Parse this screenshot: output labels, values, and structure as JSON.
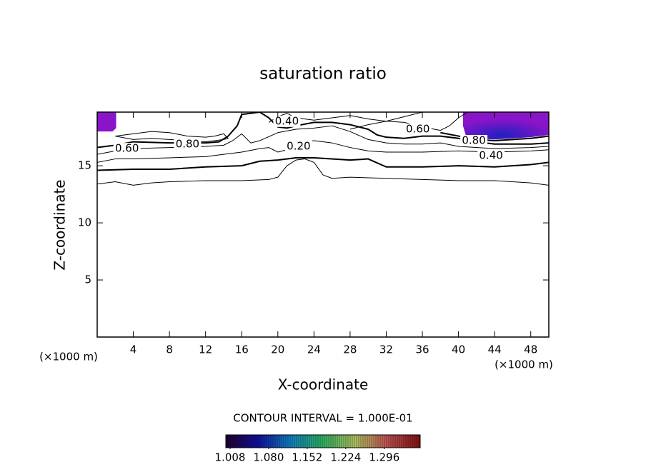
{
  "chart_data": {
    "type": "contour",
    "title": "saturation ratio",
    "x_label": "X-coordinate",
    "y_label": "Z-coordinate",
    "x_unit": "(×1000 m)",
    "y_unit": "(×1000 m)",
    "xlim": [
      0,
      50
    ],
    "ylim": [
      0,
      19.7
    ],
    "xticks": [
      4,
      8,
      12,
      16,
      20,
      24,
      28,
      32,
      36,
      40,
      44,
      48
    ],
    "yticks": [
      5,
      10,
      15
    ],
    "contours": [
      {
        "linewidth": 1,
        "x": [
          0,
          2,
          4,
          6,
          8,
          12,
          16,
          19,
          20,
          21,
          22,
          23,
          24,
          25,
          26,
          28,
          32,
          36,
          40,
          44,
          48,
          50
        ],
        "y": [
          13.4,
          13.6,
          13.3,
          13.5,
          13.6,
          13.7,
          13.7,
          13.8,
          14.0,
          15.0,
          15.5,
          15.6,
          15.3,
          14.2,
          13.9,
          14.0,
          13.9,
          13.8,
          13.7,
          13.7,
          13.5,
          13.3
        ]
      },
      {
        "linewidth": 2,
        "x": [
          0,
          4,
          8,
          12,
          16,
          18,
          20,
          22,
          24,
          28,
          30,
          32,
          36,
          40,
          44,
          48,
          50
        ],
        "y": [
          14.6,
          14.7,
          14.7,
          14.9,
          15.0,
          15.4,
          15.5,
          15.7,
          15.7,
          15.5,
          15.6,
          14.9,
          14.9,
          15.0,
          14.9,
          15.1,
          15.3
        ]
      },
      {
        "linewidth": 1,
        "x": [
          0,
          2,
          4,
          8,
          12,
          14,
          16,
          18,
          19,
          20,
          21,
          22,
          24,
          26,
          28,
          30,
          32,
          36,
          40,
          44,
          48,
          50
        ],
        "y": [
          15.3,
          15.6,
          15.6,
          15.7,
          15.8,
          16.0,
          16.2,
          16.5,
          16.6,
          16.2,
          16.4,
          17.0,
          17.2,
          17.0,
          16.6,
          16.3,
          16.2,
          16.2,
          16.3,
          16.2,
          16.3,
          16.4
        ]
      },
      {
        "linewidth": 1,
        "x": [
          0,
          2,
          4,
          8,
          12,
          14,
          15,
          16,
          17,
          18,
          20,
          22,
          24,
          26,
          28,
          30,
          32,
          34,
          36,
          38,
          40,
          44,
          48,
          50
        ],
        "y": [
          16.0,
          16.3,
          16.5,
          16.6,
          16.7,
          16.8,
          17.2,
          17.8,
          17.0,
          17.2,
          17.9,
          18.2,
          18.3,
          18.5,
          18.0,
          17.3,
          17.0,
          16.9,
          16.9,
          17.0,
          16.7,
          16.5,
          16.6,
          16.7
        ]
      },
      {
        "linewidth": 2,
        "x": [
          0,
          2,
          4,
          8,
          12,
          13.5,
          14.5,
          15.5,
          16,
          17,
          18,
          19,
          20,
          21,
          22,
          24,
          26,
          28,
          30,
          31,
          32,
          34,
          36,
          38,
          40,
          42,
          44,
          48,
          50
        ],
        "y": [
          16.6,
          16.8,
          17.1,
          17.0,
          17.0,
          17.1,
          17.6,
          18.5,
          19.5,
          19.6,
          19.7,
          19.2,
          18.4,
          18.3,
          18.5,
          18.8,
          18.8,
          18.6,
          18.2,
          17.7,
          17.5,
          17.4,
          17.6,
          17.6,
          17.4,
          17.1,
          16.9,
          16.9,
          17.0
        ]
      },
      {
        "linewidth": 1,
        "x": [
          2,
          4,
          6,
          8,
          10,
          12,
          13,
          14,
          14.5,
          14,
          12,
          10,
          8,
          6,
          4,
          2
        ],
        "y": [
          17.6,
          17.8,
          18.0,
          17.9,
          17.6,
          17.5,
          17.6,
          17.8,
          17.4,
          17.3,
          17.1,
          17.2,
          17.3,
          17.4,
          17.3,
          17.6
        ]
      },
      {
        "linewidth": 1,
        "x": [
          28,
          30,
          32,
          34,
          36,
          38,
          39,
          40,
          41
        ],
        "y": [
          18.2,
          18.6,
          18.9,
          18.8,
          18.4,
          18.1,
          18.5,
          19.2,
          19.7
        ]
      },
      {
        "linewidth": 1,
        "x": [
          19,
          20,
          21,
          22,
          24,
          26,
          28,
          30,
          32,
          34,
          36
        ],
        "y": [
          18.8,
          19.3,
          19.6,
          19.2,
          19.0,
          19.2,
          19.4,
          19.1,
          18.9,
          19.3,
          19.7
        ]
      },
      {
        "linewidth": 2,
        "x": [
          38,
          40,
          42,
          44,
          46,
          48,
          50
        ],
        "y": [
          17.9,
          17.6,
          17.3,
          17.2,
          17.3,
          17.4,
          17.6
        ]
      }
    ],
    "contour_labels": [
      {
        "value": 0.6,
        "label": "0.60",
        "x": 3.3,
        "y": 16.5
      },
      {
        "value": 0.8,
        "label": "0.80",
        "x": 10,
        "y": 16.9
      },
      {
        "value": 0.4,
        "label": "0.40",
        "x": 21,
        "y": 18.9
      },
      {
        "value": 0.2,
        "label": "0.20",
        "x": 22.3,
        "y": 16.7
      },
      {
        "value": 0.6,
        "label": "0.60",
        "x": 35.5,
        "y": 18.2
      },
      {
        "value": 0.8,
        "label": "0.80",
        "x": 41.7,
        "y": 17.2
      },
      {
        "value": 0.4,
        "label": "0.40",
        "x": 43.6,
        "y": 15.9
      }
    ],
    "filled_regions": [
      {
        "color": "#8a14c8",
        "x": [
          0,
          2.1,
          2.1,
          1.7,
          0
        ],
        "y": [
          19.7,
          19.7,
          18.3,
          18.0,
          18.0
        ]
      },
      {
        "color": "#8a14c8",
        "center_color": "#2020c0",
        "x": [
          40.5,
          50,
          50,
          48,
          46,
          44,
          42,
          40.8,
          40.5
        ],
        "y": [
          19.7,
          19.7,
          17.7,
          17.5,
          17.4,
          17.3,
          17.4,
          17.7,
          18.5
        ]
      }
    ],
    "contour_interval_text": "CONTOUR INTERVAL = 1.000E-01",
    "colorbar": {
      "clim": [
        1.0,
        1.363
      ],
      "colors": [
        "#200030",
        "#1010a0",
        "#1080c0",
        "#30b060",
        "#b0c060",
        "#c05050",
        "#801010"
      ],
      "ticks": [
        {
          "value": 1.008,
          "label": "1.008"
        },
        {
          "value": 1.08,
          "label": "1.080"
        },
        {
          "value": 1.152,
          "label": "1.152"
        },
        {
          "value": 1.224,
          "label": "1.224"
        },
        {
          "value": 1.296,
          "label": "1.296"
        }
      ]
    }
  }
}
